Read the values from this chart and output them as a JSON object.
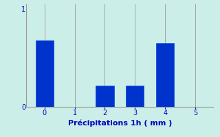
{
  "categories": [
    0,
    1,
    2,
    3,
    4,
    5
  ],
  "values": [
    0.68,
    0.0,
    0.22,
    0.22,
    0.65,
    0.0
  ],
  "bar_color": "#0033cc",
  "bar_edge_color": "#0044ee",
  "background_color": "#cceee8",
  "plot_bg_color": "#cceee8",
  "xlabel": "Précipitations 1h ( mm )",
  "ylim": [
    0,
    1.05
  ],
  "xlim": [
    -0.6,
    5.6
  ],
  "yticks": [
    0,
    1
  ],
  "xticks": [
    0,
    1,
    2,
    3,
    4,
    5
  ],
  "grid_color": "#999999",
  "text_color": "#0000bb",
  "xlabel_fontsize": 8,
  "tick_fontsize": 7,
  "bar_width": 0.6
}
